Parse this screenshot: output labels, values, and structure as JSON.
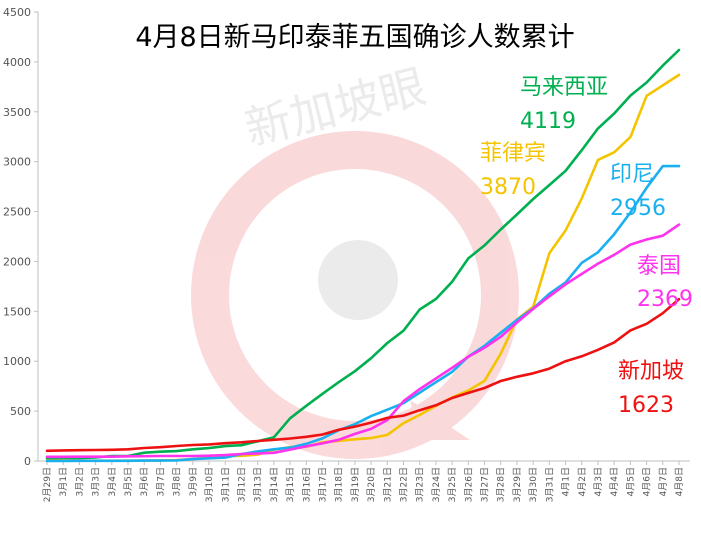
{
  "chart_data": {
    "type": "line",
    "title": "4月8日新马印泰菲五国确诊人数累计",
    "watermark": "新加坡眼",
    "ylim": [
      0,
      4500
    ],
    "yticks": [
      0,
      500,
      1000,
      1500,
      2000,
      2500,
      3000,
      3500,
      4000,
      4500
    ],
    "grid": false,
    "categories": [
      "2月29日",
      "3月1日",
      "3月2日",
      "3月3日",
      "3月4日",
      "3月5日",
      "3月6日",
      "3月7日",
      "3月8日",
      "3月9日",
      "3月10日",
      "3月11日",
      "3月12日",
      "3月13日",
      "3月14日",
      "3月15日",
      "3月16日",
      "3月17日",
      "3月18日",
      "3月19日",
      "3月20日",
      "3月21日",
      "3月22日",
      "3月23日",
      "3月24日",
      "3月25日",
      "3月26日",
      "3月27日",
      "3月28日",
      "3月29日",
      "3月30日",
      "3月31日",
      "4月1日",
      "4月2日",
      "4月3日",
      "4月4日",
      "4月5日",
      "4月6日",
      "4月7日",
      "4月8日"
    ],
    "series": [
      {
        "name": "马来西亚",
        "color": "#00b050",
        "final_label": "4119",
        "values": [
          25,
          29,
          29,
          36,
          50,
          50,
          83,
          93,
          99,
          117,
          129,
          149,
          158,
          197,
          238,
          428,
          553,
          673,
          790,
          900,
          1030,
          1183,
          1306,
          1518,
          1624,
          1796,
          2031,
          2161,
          2320,
          2470,
          2626,
          2766,
          2908,
          3116,
          3333,
          3483,
          3662,
          3793,
          3963,
          4119
        ]
      },
      {
        "name": "菲律宾",
        "color": "#f5c400",
        "final_label": "3870",
        "values": [
          3,
          3,
          3,
          3,
          3,
          3,
          5,
          6,
          10,
          20,
          33,
          49,
          52,
          64,
          111,
          140,
          142,
          187,
          202,
          217,
          230,
          262,
          380,
          462,
          552,
          636,
          707,
          803,
          1075,
          1418,
          1546,
          2084,
          2311,
          2633,
          3018,
          3094,
          3246,
          3660,
          3764,
          3870
        ]
      },
      {
        "name": "印尼",
        "color": "#1ab0f0",
        "final_label": "2956",
        "values": [
          0,
          0,
          2,
          2,
          2,
          2,
          4,
          4,
          6,
          19,
          27,
          34,
          69,
          96,
          117,
          134,
          172,
          227,
          309,
          369,
          450,
          514,
          579,
          686,
          790,
          893,
          1046,
          1155,
          1285,
          1414,
          1528,
          1677,
          1790,
          1986,
          2092,
          2273,
          2491,
          2738,
          2956,
          2956
        ]
      },
      {
        "name": "泰国",
        "color": "#ff33ee",
        "final_label": "2369",
        "values": [
          42,
          42,
          43,
          43,
          43,
          47,
          48,
          50,
          50,
          50,
          53,
          59,
          70,
          75,
          82,
          114,
          147,
          177,
          212,
          272,
          322,
          411,
          599,
          721,
          827,
          934,
          1045,
          1136,
          1245,
          1388,
          1524,
          1651,
          1771,
          1875,
          1978,
          2067,
          2169,
          2220,
          2258,
          2369
        ]
      },
      {
        "name": "新加坡",
        "color": "#ee1111",
        "final_label": "1623",
        "values": [
          102,
          106,
          108,
          110,
          112,
          117,
          130,
          138,
          150,
          160,
          166,
          178,
          187,
          200,
          212,
          226,
          243,
          266,
          313,
          345,
          385,
          432,
          455,
          509,
          558,
          631,
          683,
          732,
          802,
          844,
          879,
          926,
          1000,
          1049,
          1114,
          1189,
          1309,
          1375,
          1481,
          1623
        ]
      }
    ]
  }
}
